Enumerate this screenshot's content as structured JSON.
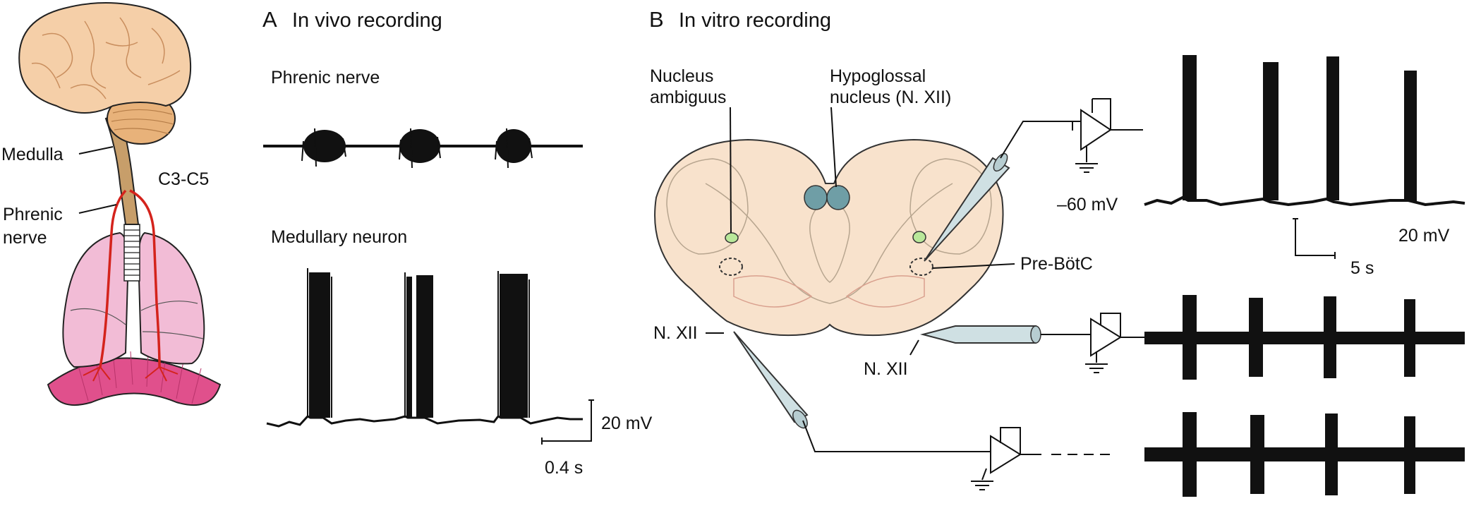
{
  "anatomy": {
    "labels": {
      "medulla": "Medulla",
      "c3c5": "C3-C5",
      "phrenic_line1": "Phrenic",
      "phrenic_line2": "nerve"
    },
    "colors": {
      "brain": "#f5cfa8",
      "cerebellum": "#e8b27a",
      "brainstem": "#c79e6a",
      "lungs": "#f2bcd6",
      "diaphragm": "#e0508c",
      "nerve": "#d4231c"
    }
  },
  "panel_a": {
    "letter": "A",
    "title": "In vivo recording",
    "phrenic_label": "Phrenic nerve",
    "neuron_label": "Medullary neuron",
    "scale_voltage": "20 mV",
    "scale_time": "0.4 s",
    "bursts_per_trace": 3
  },
  "panel_b": {
    "letter": "B",
    "title": "In vitro recording",
    "labels": {
      "nucleus_ambiguus_line1": "Nucleus",
      "nucleus_ambiguus_line2": "ambiguus",
      "hypoglossal_line1": "Hypoglossal",
      "hypoglossal_line2": "nucleus (N. XII)",
      "pre_botc": "Pre-BötC",
      "nxii_left": "N. XII",
      "nxii_right": "N. XII",
      "resting_potential": "–60 mV",
      "scale_voltage": "20 mV",
      "scale_time": "5 s"
    },
    "colors": {
      "slice": "#f8e2cc",
      "hypoglossal_nucleus": "#6f9ea6",
      "nucleus_ambiguus": "#b9e89a",
      "electrode": "#cfe0e3"
    },
    "bursts_per_trace": 4
  }
}
